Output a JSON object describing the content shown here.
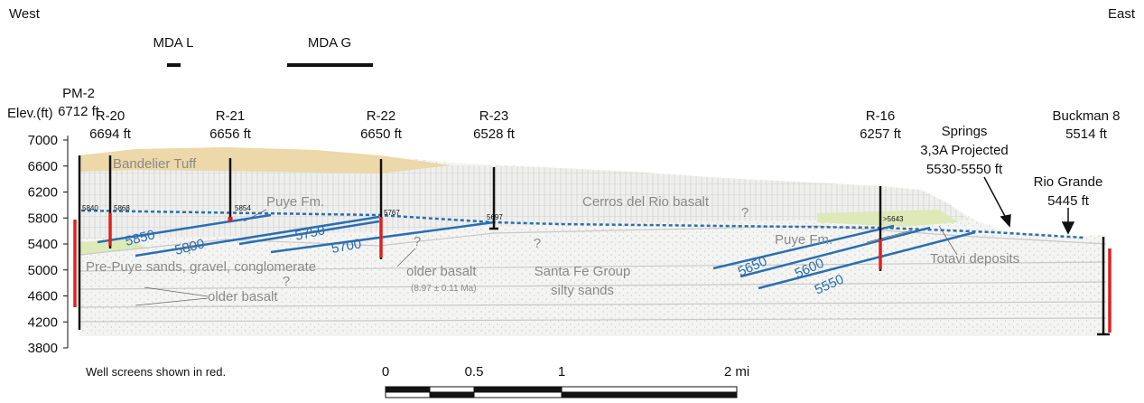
{
  "header": {
    "west": "West",
    "east": "East"
  },
  "sites": [
    {
      "name": "MDA L"
    },
    {
      "name": "MDA G"
    }
  ],
  "wells": [
    {
      "name": "PM-2",
      "elevation": "6712 ft"
    },
    {
      "name": "R-20",
      "elevation": "6694 ft"
    },
    {
      "name": "R-21",
      "elevation": "6656 ft"
    },
    {
      "name": "R-22",
      "elevation": "6650 ft"
    },
    {
      "name": "R-23",
      "elevation": "6528 ft"
    },
    {
      "name": "R-16",
      "elevation": "6257 ft"
    },
    {
      "name": "Buckman 8",
      "elevation": "5514 ft"
    }
  ],
  "elevation_axis": {
    "label": "Elev.(ft)",
    "ticks": [
      7000,
      6600,
      6200,
      5800,
      5400,
      5000,
      4600,
      4200,
      3800
    ]
  },
  "water_levels": [
    "5840",
    "5868",
    "5854",
    "5767",
    "5697",
    ">5643"
  ],
  "contours": [
    "5850",
    "5800",
    "5750",
    "5700",
    "5650",
    "5600",
    "5550"
  ],
  "units": [
    "Bandelier Tuff",
    "Puye Fm.",
    "Cerros del Rio basalt",
    "?",
    "?",
    "?",
    "Pre-Puye sands, gravel, conglomerate",
    "?",
    "older basalt",
    "(8.97 ± 0.11 Ma)",
    "Santa Fe Group",
    "silty sands",
    "?",
    "older basalt",
    "Puye Fm.",
    "Totavi deposits"
  ],
  "features": [
    {
      "lines": [
        "Springs",
        "3,3A Projected",
        "5530-5550 ft"
      ]
    },
    {
      "lines": [
        "Rio Grande",
        "5445 ft"
      ]
    }
  ],
  "note": "Well screens shown in red.",
  "scale_bar": {
    "labels": [
      "0",
      "0.5",
      "1",
      "2 mi"
    ]
  }
}
